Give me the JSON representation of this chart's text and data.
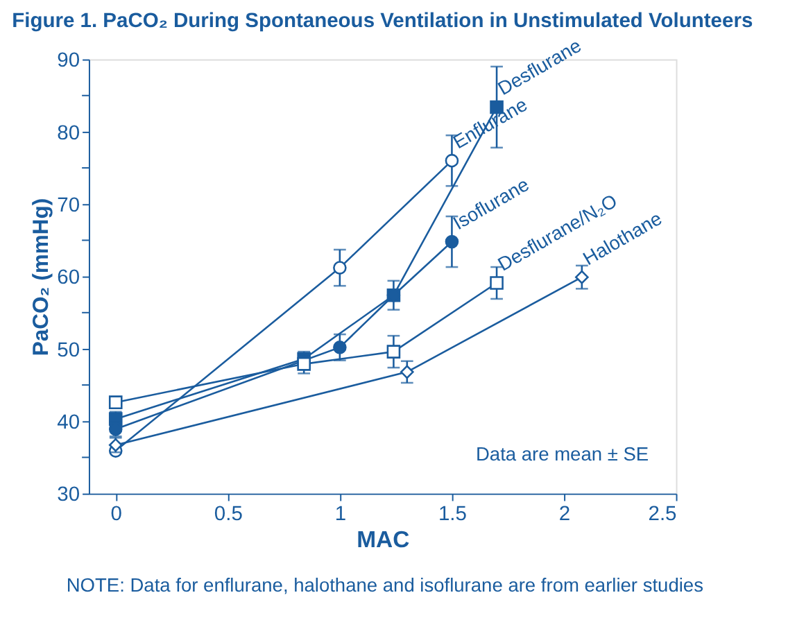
{
  "chart_data": {
    "type": "line",
    "title": "Figure 1. PaCO₂ During Spontaneous Ventilation in Unstimulated Volunteers",
    "xlabel": "MAC",
    "ylabel": "PaCO₂ (mmHg)",
    "xlim": [
      -0.12,
      2.5
    ],
    "xticks": [
      0,
      0.5,
      1,
      1.5,
      2,
      2.5
    ],
    "ylim": [
      30,
      90
    ],
    "yticks": [
      30,
      {
        "value": 35,
        "label": null
      },
      40,
      {
        "value": 45,
        "label": null
      },
      50,
      {
        "value": 55,
        "label": null
      },
      60,
      {
        "value": 65,
        "label": null
      },
      70,
      {
        "value": 75,
        "label": null
      },
      80,
      {
        "value": 85,
        "label": null
      },
      90
    ],
    "grid": false,
    "line_style": "solid",
    "series": [
      {
        "name": "Desflurane",
        "color": "#1a5c9e",
        "marker": "square",
        "x": [
          0,
          0.84,
          1.24,
          1.7
        ],
        "values": [
          40.3,
          48.6,
          57.4,
          83.4
        ],
        "errors": [
          1,
          1,
          2,
          5.6
        ]
      },
      {
        "name": "Enflurane",
        "color": "#1a5c9e",
        "marker": "circle",
        "colors": [
          "#ffffff",
          "#ffffff",
          "#ffffff"
        ],
        "x": [
          0,
          1.0,
          1.5
        ],
        "values": [
          35.9,
          61.2,
          76.0
        ],
        "errors": [
          null,
          2.5,
          3.5
        ]
      },
      {
        "name": "Isoflurane",
        "color": "#1a5c9e",
        "marker": "circle",
        "x": [
          0,
          1.0,
          1.24,
          1.5
        ],
        "values": [
          38.9,
          50.2,
          57.4,
          64.8
        ],
        "errors": [
          1,
          1.8,
          null,
          3.5
        ]
      },
      {
        "name": "Desflurane/N₂O",
        "color": "#1a5c9e",
        "marker": "square",
        "colors": [
          "#ffffff",
          "#ffffff",
          "#ffffff",
          "#ffffff"
        ],
        "x": [
          0,
          0.84,
          1.24,
          1.7
        ],
        "values": [
          42.6,
          47.9,
          49.6,
          59.1
        ],
        "errors": [
          null,
          1.3,
          2.2,
          2.2
        ]
      },
      {
        "name": "Halothane",
        "color": "#1a5c9e",
        "marker": "diamond",
        "colors": [
          "#ffffff",
          "#ffffff",
          "#ffffff"
        ],
        "x": [
          0,
          1.3,
          2.08
        ],
        "values": [
          36.7,
          46.8,
          59.9
        ],
        "errors": [
          1,
          1.5,
          1.6
        ]
      }
    ],
    "annotations": [
      "Data are mean ± SE",
      "NOTE: Data for enflurane, halothane and isoflurane are from earlier studies"
    ]
  }
}
